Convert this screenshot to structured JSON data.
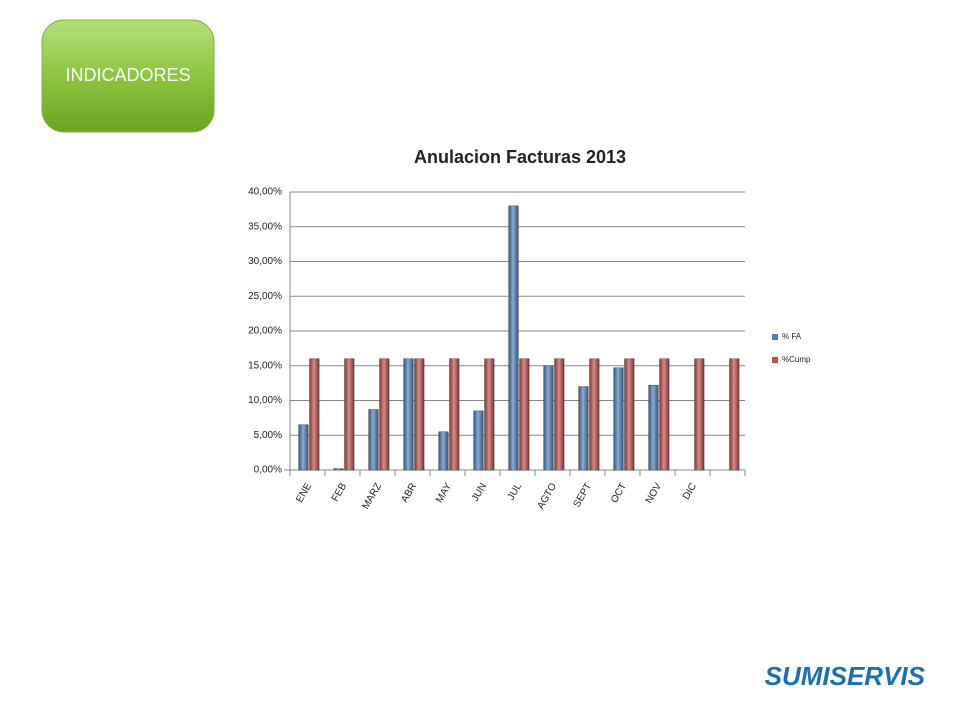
{
  "button": {
    "label": "INDICADORES"
  },
  "logo": {
    "text": "SUMISERVIS"
  },
  "chart_data": {
    "type": "bar",
    "title": "Anulacion Facturas 2013",
    "categories": [
      "ENE",
      "FEB",
      "MARZ",
      "ABR",
      "MAY",
      "JUN",
      "JUL",
      "AGTO",
      "SEPT",
      "OCT",
      "NOV",
      "DIC",
      null
    ],
    "series": [
      {
        "name": "% FA",
        "color": "#4f81bd",
        "values": [
          6.5,
          0.2,
          8.7,
          16,
          5.5,
          8.5,
          38,
          15,
          12,
          14.7,
          12.2,
          null,
          null
        ]
      },
      {
        "name": "%Cump",
        "color": "#c0504d",
        "values": [
          16,
          16,
          16,
          16,
          16,
          16,
          16,
          16,
          16,
          16,
          16,
          16,
          16
        ]
      }
    ],
    "ylim": [
      0,
      40
    ],
    "yticks": [
      {
        "value": 0,
        "label": "0,00%"
      },
      {
        "value": 5,
        "label": "5,00%"
      },
      {
        "value": 10,
        "label": "10,00%"
      },
      {
        "value": 15,
        "label": "15,00%"
      },
      {
        "value": 20,
        "label": "20,00%"
      },
      {
        "value": 25,
        "label": "25,00%"
      },
      {
        "value": 30,
        "label": "30,00%"
      },
      {
        "value": 35,
        "label": "35,00%"
      },
      {
        "value": 40,
        "label": "40,00%"
      }
    ],
    "grid": true,
    "legend": "right"
  }
}
